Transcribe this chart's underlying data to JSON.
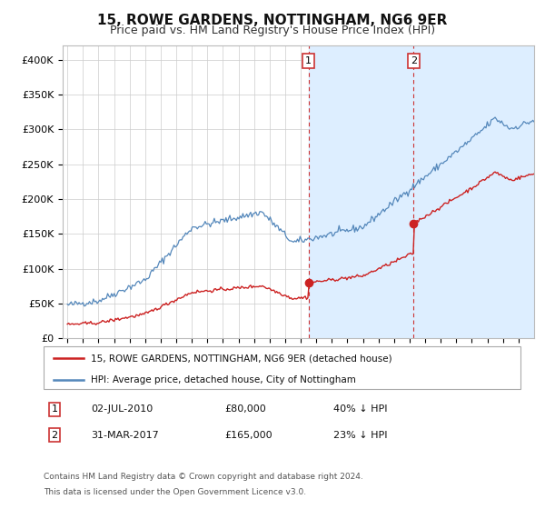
{
  "title": "15, ROWE GARDENS, NOTTINGHAM, NG6 9ER",
  "subtitle": "Price paid vs. HM Land Registry's House Price Index (HPI)",
  "title_fontsize": 11,
  "subtitle_fontsize": 9,
  "ylabel_ticks": [
    "£0",
    "£50K",
    "£100K",
    "£150K",
    "£200K",
    "£250K",
    "£300K",
    "£350K",
    "£400K"
  ],
  "ytick_values": [
    0,
    50000,
    100000,
    150000,
    200000,
    250000,
    300000,
    350000,
    400000
  ],
  "ylim": [
    0,
    420000
  ],
  "xlim_start": 1994.7,
  "xlim_end": 2025.0,
  "hpi_color": "#5588bb",
  "hpi_band_color": "#ddeeff",
  "property_color": "#cc2222",
  "sale1_date": 2010.5,
  "sale1_price": 80000,
  "sale2_date": 2017.25,
  "sale2_price": 165000,
  "legend_label1": "15, ROWE GARDENS, NOTTINGHAM, NG6 9ER (detached house)",
  "legend_label2": "HPI: Average price, detached house, City of Nottingham",
  "annotation1_label": "1",
  "annotation1_date": "02-JUL-2010",
  "annotation1_price": "£80,000",
  "annotation1_hpi": "40% ↓ HPI",
  "annotation2_label": "2",
  "annotation2_date": "31-MAR-2017",
  "annotation2_price": "£165,000",
  "annotation2_hpi": "23% ↓ HPI",
  "footnote1": "Contains HM Land Registry data © Crown copyright and database right 2024.",
  "footnote2": "This data is licensed under the Open Government Licence v3.0.",
  "background_color": "#ffffff",
  "grid_color": "#cccccc"
}
